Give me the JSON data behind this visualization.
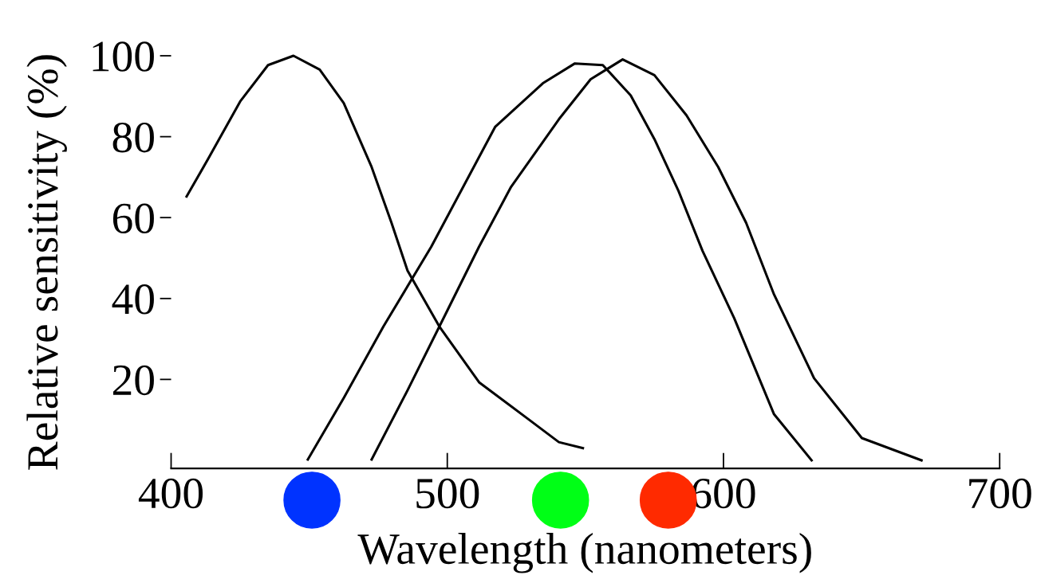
{
  "chart_data": {
    "type": "line",
    "xlabel": "Wavelength (nanometers)",
    "ylabel": "Relative sensitivity (%)",
    "xlim": [
      400,
      700
    ],
    "xticks": [
      400,
      500,
      600,
      700
    ],
    "ylim": [
      -2,
      100
    ],
    "yticks": [
      20,
      40,
      60,
      80,
      100
    ],
    "grid": false,
    "marker": "none",
    "line_style": "solid",
    "series": [
      {
        "color": "#000000",
        "x": [
          405.6,
          413.4,
          425,
          435.1,
          444.3,
          453.8,
          462.5,
          472.6,
          479.8,
          485.6,
          497.1,
          511.5,
          528.9,
          540.4,
          549.1
        ],
        "values": [
          65.2,
          74.5,
          88.7,
          97.7,
          100,
          96.6,
          88.3,
          72.5,
          58.7,
          46.9,
          33.1,
          19.3,
          10.4,
          4.5,
          3.0
        ]
      },
      {
        "color": "#000000",
        "x": [
          449.5,
          462.5,
          476.9,
          494.2,
          517.3,
          534.6,
          546.2,
          556.3,
          566.4,
          575.0,
          583.7,
          592.4,
          603.9,
          618.3,
          631.9
        ],
        "values": [
          0.2,
          15.4,
          33.1,
          52.8,
          82.4,
          93.2,
          98.1,
          97.7,
          90.2,
          79.4,
          66.6,
          51.8,
          35.1,
          11.4,
          0
        ]
      },
      {
        "color": "#000000",
        "x": [
          472.6,
          485.6,
          500,
          511.5,
          523.1,
          540.4,
          551.9,
          563.5,
          575.0,
          586.6,
          598.1,
          608.2,
          618.3,
          632.8,
          650.1,
          671.7
        ],
        "values": [
          0.2,
          17.3,
          37.0,
          52.8,
          67.6,
          84.3,
          94.2,
          99.1,
          95.2,
          85.3,
          72.5,
          58.7,
          41.0,
          20.3,
          5.5,
          0
        ]
      }
    ]
  }
}
